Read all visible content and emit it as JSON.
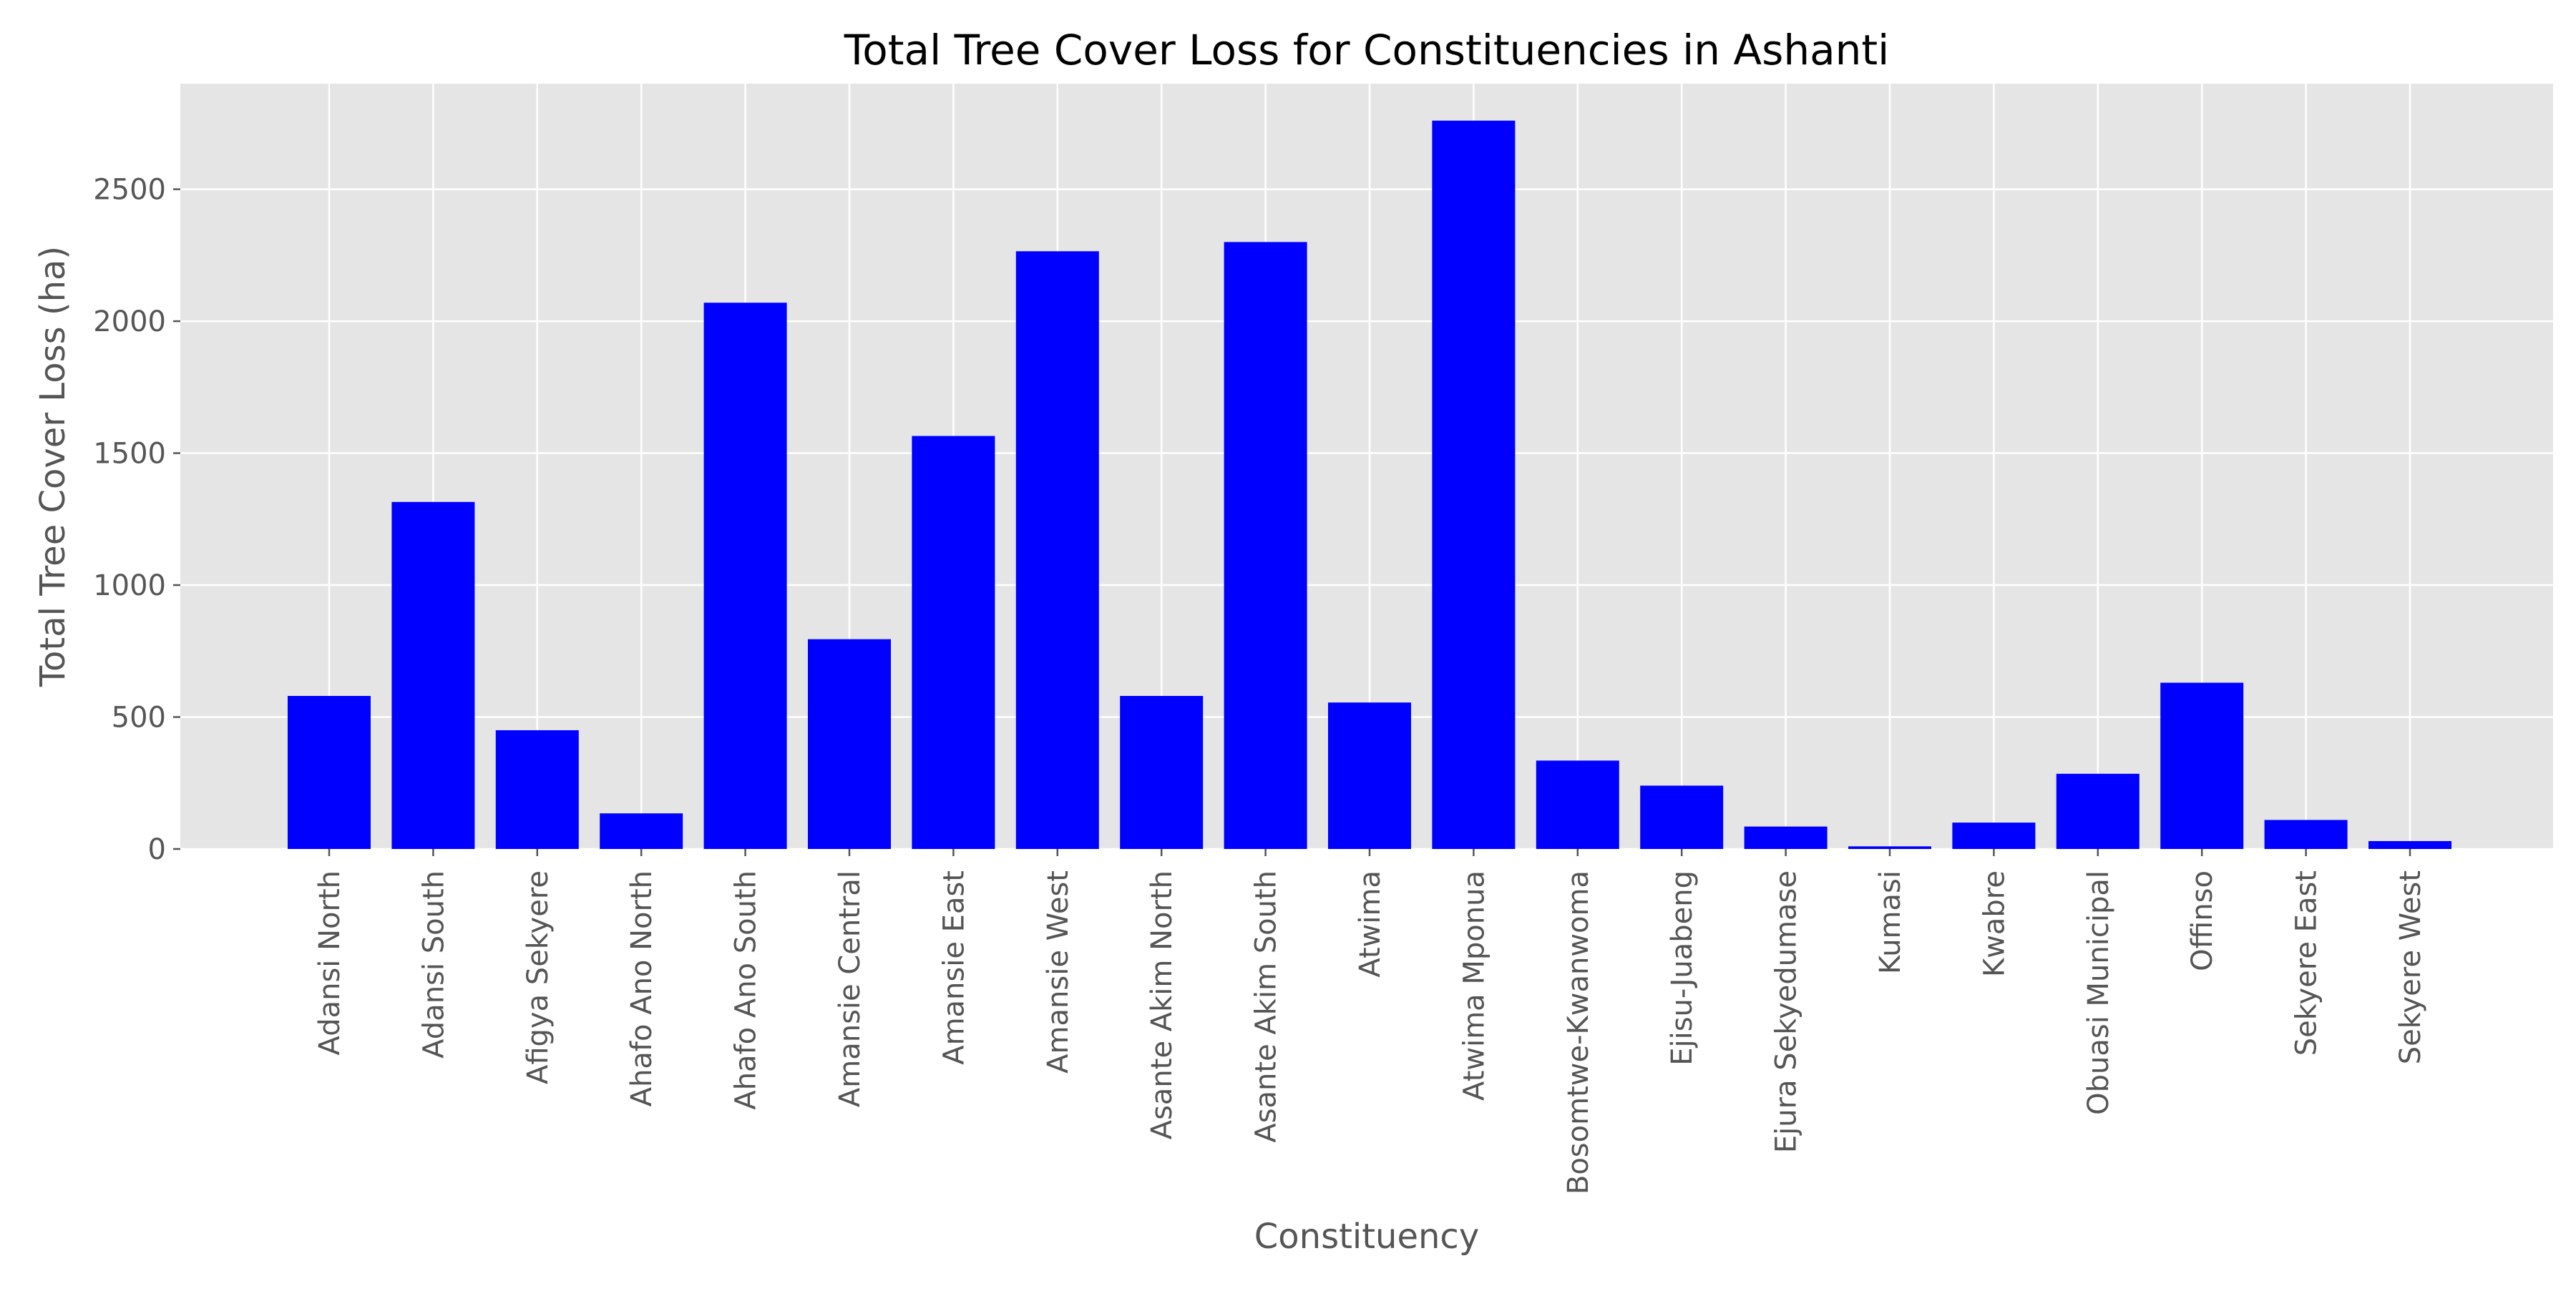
{
  "chart_data": {
    "type": "bar",
    "title": "Total Tree Cover Loss for Constituencies in Ashanti",
    "xlabel": "Constituency",
    "ylabel": "Total Tree Cover Loss (ha)",
    "ylim": [
      0,
      2900
    ],
    "yticks": [
      0,
      500,
      1000,
      1500,
      2000,
      2500
    ],
    "grid": true,
    "categories": [
      "Adansi North",
      "Adansi South",
      "Afigya Sekyere",
      "Ahafo Ano North",
      "Ahafo Ano South",
      "Amansie Central",
      "Amansie East",
      "Amansie West",
      "Asante Akim North",
      "Asante Akim South",
      "Atwima",
      "Atwima Mponua",
      "Bosomtwe-Kwanwoma",
      "Ejisu-Juabeng",
      "Ejura Sekyedumase",
      "Kumasi",
      "Kwabre",
      "Obuasi Municipal",
      "Offinso",
      "Sekyere East",
      "Sekyere West"
    ],
    "values": [
      580,
      1315,
      450,
      135,
      2070,
      795,
      1565,
      2265,
      580,
      2300,
      555,
      2760,
      335,
      240,
      85,
      10,
      100,
      285,
      630,
      110,
      30
    ],
    "colors": {
      "bar": "#0000ff",
      "plot_bg": "#e5e5e5",
      "grid": "#ffffff",
      "tick": "#555555"
    }
  }
}
